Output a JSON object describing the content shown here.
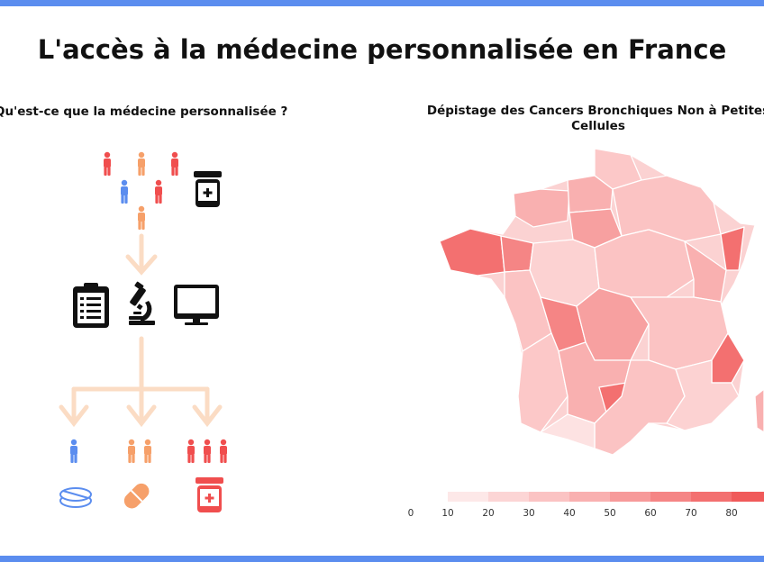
{
  "page": {
    "title": "L'accès à la médecine personnalisée en France",
    "accent_color": "#5b8def"
  },
  "left_panel": {
    "heading": "Qu'est-ce que la médecine personnalisée ?",
    "icons": [
      "person-icon",
      "medicine-jar-icon",
      "clipboard-icon",
      "microscope-icon",
      "monitor-icon",
      "pill-icon",
      "capsule-icon"
    ],
    "colors": {
      "red": "#f04e4e",
      "orange": "#f6a06a",
      "blue": "#5b8def",
      "arrow": "#fbdcc4"
    }
  },
  "right_panel": {
    "heading_line1": "Dépistage des Cancers Bronchiques Non à Petites",
    "heading_line2": "Cellules",
    "legend": {
      "ticks": [
        "0",
        "10",
        "20",
        "30",
        "40",
        "50",
        "60",
        "70",
        "80"
      ],
      "colors": [
        "#fde8e8",
        "#fcd5d5",
        "#fbc3c3",
        "#f9b0b0",
        "#f79a9a",
        "#f58585",
        "#f37070",
        "#f05a5a"
      ]
    }
  }
}
